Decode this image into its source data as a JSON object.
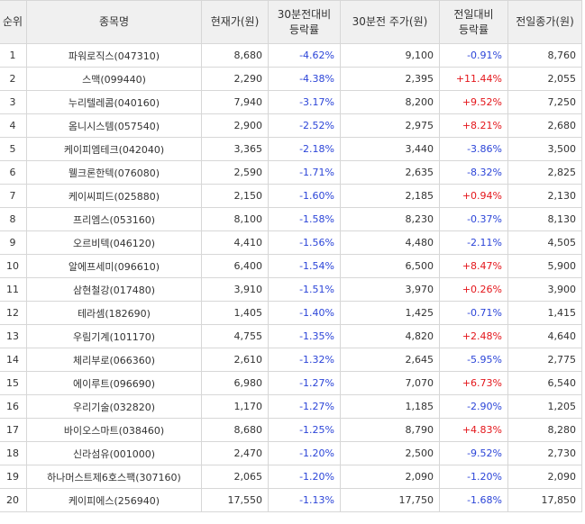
{
  "headers": [
    "순위",
    "종목명",
    "현재가(원)",
    "30분전대비\n등락률",
    "30분전 주가(원)",
    "전일대비\n등락률",
    "전일종가(원)"
  ],
  "colors": {
    "down": "#2c45d8",
    "up": "#e4161b"
  },
  "rows": [
    {
      "rank": "1",
      "name": "파워로직스(047310)",
      "price": "8,680",
      "chg30": "-4.62%",
      "price30": "9,100",
      "chgPrev": "-0.91%",
      "prevClose": "8,760"
    },
    {
      "rank": "2",
      "name": "스맥(099440)",
      "price": "2,290",
      "chg30": "-4.38%",
      "price30": "2,395",
      "chgPrev": "+11.44%",
      "prevClose": "2,055"
    },
    {
      "rank": "3",
      "name": "누리텔레콤(040160)",
      "price": "7,940",
      "chg30": "-3.17%",
      "price30": "8,200",
      "chgPrev": "+9.52%",
      "prevClose": "7,250"
    },
    {
      "rank": "4",
      "name": "옴니시스템(057540)",
      "price": "2,900",
      "chg30": "-2.52%",
      "price30": "2,975",
      "chgPrev": "+8.21%",
      "prevClose": "2,680"
    },
    {
      "rank": "5",
      "name": "케이피엠테크(042040)",
      "price": "3,365",
      "chg30": "-2.18%",
      "price30": "3,440",
      "chgPrev": "-3.86%",
      "prevClose": "3,500"
    },
    {
      "rank": "6",
      "name": "웰크론한텍(076080)",
      "price": "2,590",
      "chg30": "-1.71%",
      "price30": "2,635",
      "chgPrev": "-8.32%",
      "prevClose": "2,825"
    },
    {
      "rank": "7",
      "name": "케이씨피드(025880)",
      "price": "2,150",
      "chg30": "-1.60%",
      "price30": "2,185",
      "chgPrev": "+0.94%",
      "prevClose": "2,130"
    },
    {
      "rank": "8",
      "name": "프리엠스(053160)",
      "price": "8,100",
      "chg30": "-1.58%",
      "price30": "8,230",
      "chgPrev": "-0.37%",
      "prevClose": "8,130"
    },
    {
      "rank": "9",
      "name": "오르비텍(046120)",
      "price": "4,410",
      "chg30": "-1.56%",
      "price30": "4,480",
      "chgPrev": "-2.11%",
      "prevClose": "4,505"
    },
    {
      "rank": "10",
      "name": "알에프세미(096610)",
      "price": "6,400",
      "chg30": "-1.54%",
      "price30": "6,500",
      "chgPrev": "+8.47%",
      "prevClose": "5,900"
    },
    {
      "rank": "11",
      "name": "삼현철강(017480)",
      "price": "3,910",
      "chg30": "-1.51%",
      "price30": "3,970",
      "chgPrev": "+0.26%",
      "prevClose": "3,900"
    },
    {
      "rank": "12",
      "name": "테라셈(182690)",
      "price": "1,405",
      "chg30": "-1.40%",
      "price30": "1,425",
      "chgPrev": "-0.71%",
      "prevClose": "1,415"
    },
    {
      "rank": "13",
      "name": "우림기계(101170)",
      "price": "4,755",
      "chg30": "-1.35%",
      "price30": "4,820",
      "chgPrev": "+2.48%",
      "prevClose": "4,640"
    },
    {
      "rank": "14",
      "name": "체리부로(066360)",
      "price": "2,610",
      "chg30": "-1.32%",
      "price30": "2,645",
      "chgPrev": "-5.95%",
      "prevClose": "2,775"
    },
    {
      "rank": "15",
      "name": "에이루트(096690)",
      "price": "6,980",
      "chg30": "-1.27%",
      "price30": "7,070",
      "chgPrev": "+6.73%",
      "prevClose": "6,540"
    },
    {
      "rank": "16",
      "name": "우리기술(032820)",
      "price": "1,170",
      "chg30": "-1.27%",
      "price30": "1,185",
      "chgPrev": "-2.90%",
      "prevClose": "1,205"
    },
    {
      "rank": "17",
      "name": "바이오스마트(038460)",
      "price": "8,680",
      "chg30": "-1.25%",
      "price30": "8,790",
      "chgPrev": "+4.83%",
      "prevClose": "8,280"
    },
    {
      "rank": "18",
      "name": "신라섬유(001000)",
      "price": "2,470",
      "chg30": "-1.20%",
      "price30": "2,500",
      "chgPrev": "-9.52%",
      "prevClose": "2,730"
    },
    {
      "rank": "19",
      "name": "하나머스트제6호스팩(307160)",
      "price": "2,065",
      "chg30": "-1.20%",
      "price30": "2,090",
      "chgPrev": "-1.20%",
      "prevClose": "2,090"
    },
    {
      "rank": "20",
      "name": "케이피에스(256940)",
      "price": "17,550",
      "chg30": "-1.13%",
      "price30": "17,750",
      "chgPrev": "-1.68%",
      "prevClose": "17,850"
    }
  ]
}
